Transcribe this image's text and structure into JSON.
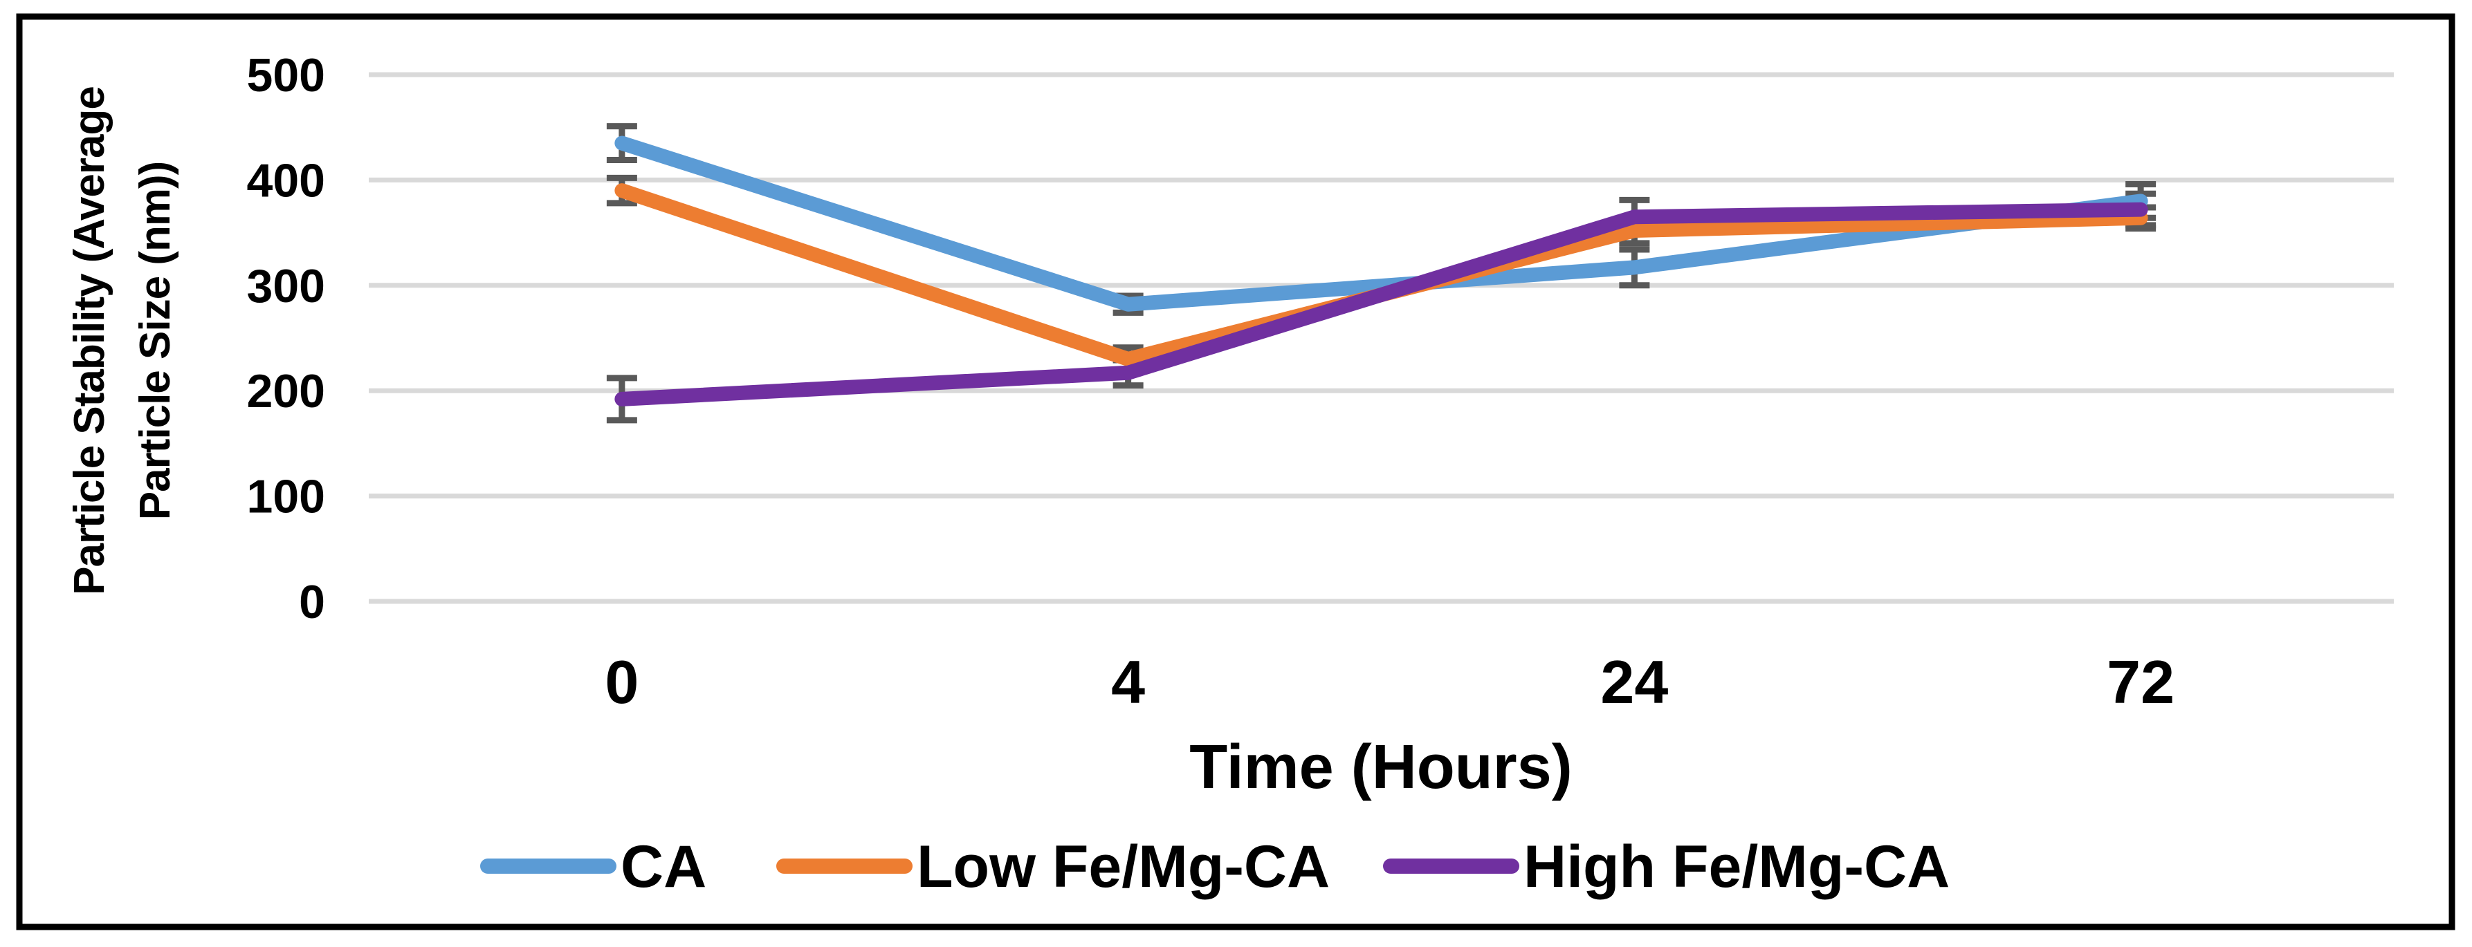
{
  "figure": {
    "background_color": "#FFFFFF",
    "border_color": "#000000"
  },
  "chart_data": {
    "type": "line",
    "title": "",
    "xlabel": "Time (Hours)",
    "ylabel": "Particle Stability (Average Particle Size (nm))",
    "ylabel_line1": "Particle Stability (Average",
    "ylabel_line2": "Particle Size (nm))",
    "categories": [
      "0",
      "4",
      "24",
      "72"
    ],
    "ylim": [
      0,
      500
    ],
    "yticks": [
      500,
      400,
      300,
      200,
      100,
      0
    ],
    "grid": true,
    "legend_position": "bottom",
    "series": [
      {
        "name": "CA",
        "color": "#5B9BD5",
        "values": [
          435,
          282,
          317,
          380
        ],
        "errors": [
          16,
          8,
          17,
          16
        ]
      },
      {
        "name": "Low Fe/Mg-CA",
        "color": "#ED7D31",
        "values": [
          390,
          230,
          352,
          364
        ],
        "errors": [
          12,
          11,
          12,
          10
        ]
      },
      {
        "name": "High Fe/Mg-CA",
        "color": "#7030A0",
        "values": [
          192,
          217,
          365,
          372
        ],
        "errors": [
          20,
          12,
          16,
          15
        ]
      }
    ],
    "error_bar_color": "#595959",
    "gridline_color": "#D9D9D9"
  }
}
